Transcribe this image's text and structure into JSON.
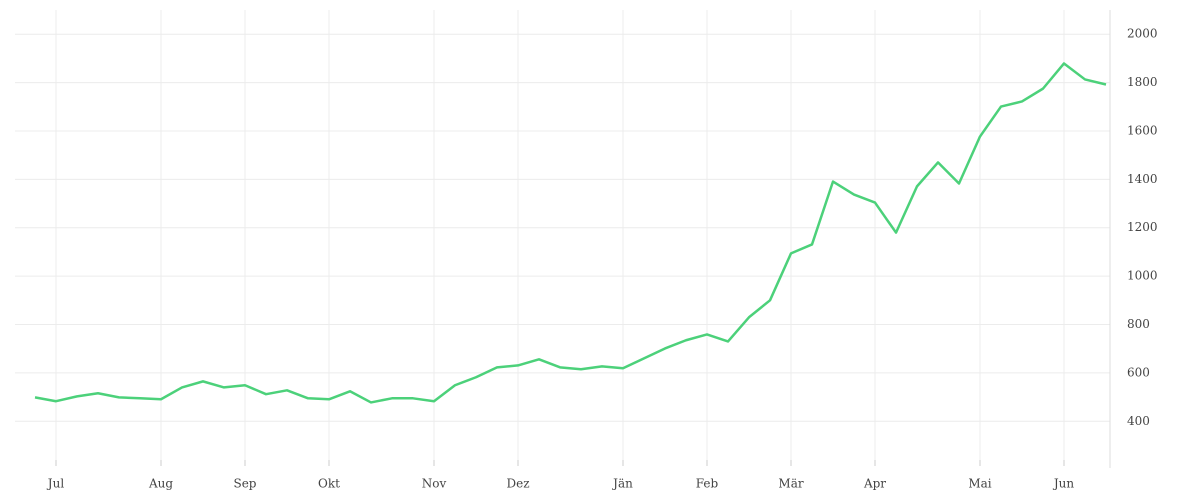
{
  "chart_data": {
    "type": "line",
    "categories": [
      null,
      "Jul",
      null,
      null,
      null,
      null,
      "Aug",
      null,
      null,
      null,
      "Sep",
      null,
      null,
      null,
      "Okt",
      null,
      null,
      null,
      null,
      "Nov",
      null,
      null,
      null,
      "Dez",
      null,
      null,
      null,
      null,
      "Jän",
      null,
      null,
      null,
      "Feb",
      null,
      null,
      null,
      "Mär",
      null,
      null,
      null,
      "Apr",
      null,
      null,
      null,
      null,
      "Mai",
      null,
      null,
      null,
      "Jun",
      null,
      null
    ],
    "values": [
      499,
      483,
      503,
      516,
      499,
      495,
      491,
      540,
      565,
      540,
      549,
      512,
      528,
      495,
      491,
      524,
      478,
      495,
      495,
      483,
      549,
      582,
      623,
      631,
      656,
      623,
      615,
      627,
      619,
      660,
      701,
      735,
      759,
      730,
      830,
      900,
      1094,
      1131,
      1391,
      1337,
      1304,
      1180,
      1371,
      1470,
      1383,
      1577,
      1701,
      1722,
      1775,
      1879,
      1813,
      1792
    ],
    "color": "#4cd17a",
    "ylim": [
      240,
      2100
    ],
    "yticks": [
      400,
      600,
      800,
      1000,
      1200,
      1400,
      1600,
      1800,
      2000
    ],
    "grid": true
  }
}
